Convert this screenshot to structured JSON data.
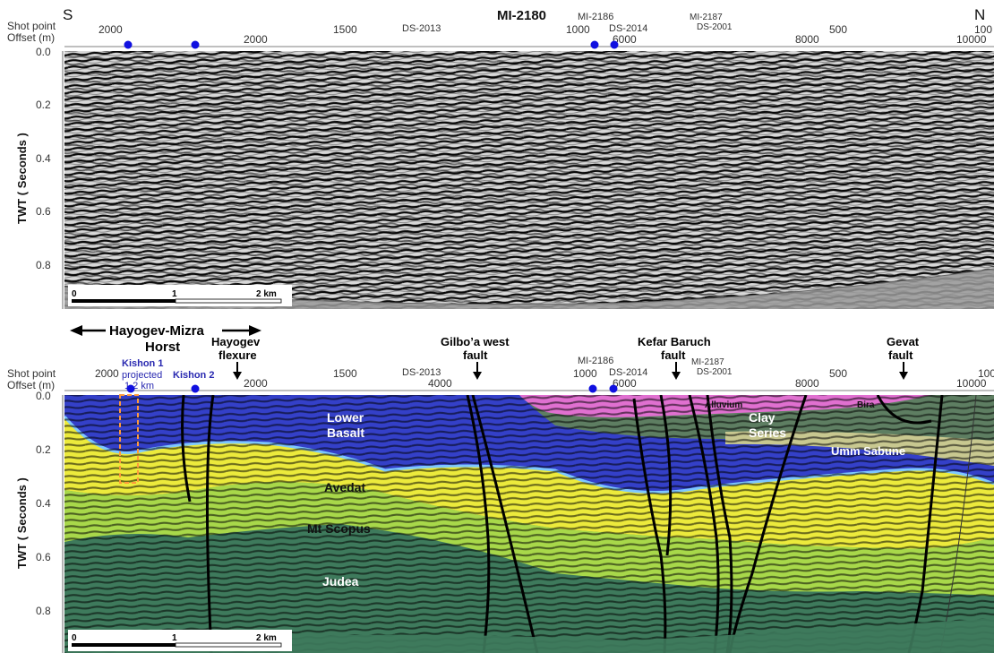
{
  "header": {
    "south": "S",
    "north": "N",
    "title": "MI-2180"
  },
  "axis_labels": {
    "shot_point": "Shot point",
    "offset": "Offset (m)",
    "twt": "TWT  ( Seconds )"
  },
  "top_panel": {
    "shot_points": [
      "2000",
      "1500",
      "1000",
      "500",
      "100"
    ],
    "offsets": [
      "2000",
      "6000",
      "8000",
      "10000"
    ],
    "well_labels": [
      "DS-2013",
      "MI-2186",
      "DS-2014",
      "MI-2187",
      "DS-2001"
    ],
    "y_ticks": [
      "0.0",
      "0.2",
      "0.4",
      "0.6",
      "0.8"
    ],
    "scale": [
      "0",
      "1",
      "2 km"
    ]
  },
  "bottom_panel": {
    "shot_points": [
      "2000",
      "1500",
      "1000",
      "500",
      "100"
    ],
    "offsets": [
      "2000",
      "4000",
      "6000",
      "8000",
      "10000"
    ],
    "well_labels": [
      "DS-2013",
      "MI-2186",
      "DS-2014",
      "MI-2187",
      "DS-2001"
    ],
    "y_ticks": [
      "0.0",
      "0.2",
      "0.4",
      "0.6",
      "0.8"
    ],
    "scale": [
      "0",
      "1",
      "2 km"
    ],
    "structures": {
      "horst_line1": "Hayogev-Mizra",
      "horst_line2": "Horst",
      "flexure_line1": "Hayogev",
      "flexure_line2": "flexure",
      "gilboa_line1": "Gilbo’a west",
      "gilboa_line2": "fault",
      "kefar_line1": "Kefar Baruch",
      "kefar_line2": "fault",
      "gevat_line1": "Gevat",
      "gevat_line2": "fault"
    },
    "wells": {
      "kishon1": "Kishon 1",
      "projected": "projected",
      "distance": "1.2 km",
      "kishon2": "Kishon 2"
    },
    "layers": {
      "lower_basalt_1": "Lower",
      "lower_basalt_2": "Basalt",
      "avedat": "Avedat",
      "mt_scopus": "Mt Scopus",
      "judea": "Judea",
      "clay_1": "Clay",
      "clay_2": "Series",
      "umm_sabune": "Umm Sabune",
      "alluvium": "Alluvium",
      "bira": "Bira"
    }
  },
  "colors": {
    "judea": "#3e7a5c",
    "mt_scopus": "#a8d84a",
    "avedat": "#ecea3c",
    "lower_basalt": "#3440c8",
    "clay": "#5e7e62",
    "umm_sabune": "#c8c890",
    "pink": "#e070d0",
    "well_marker": "#1010e0",
    "kishon_text": "#2828b0"
  }
}
